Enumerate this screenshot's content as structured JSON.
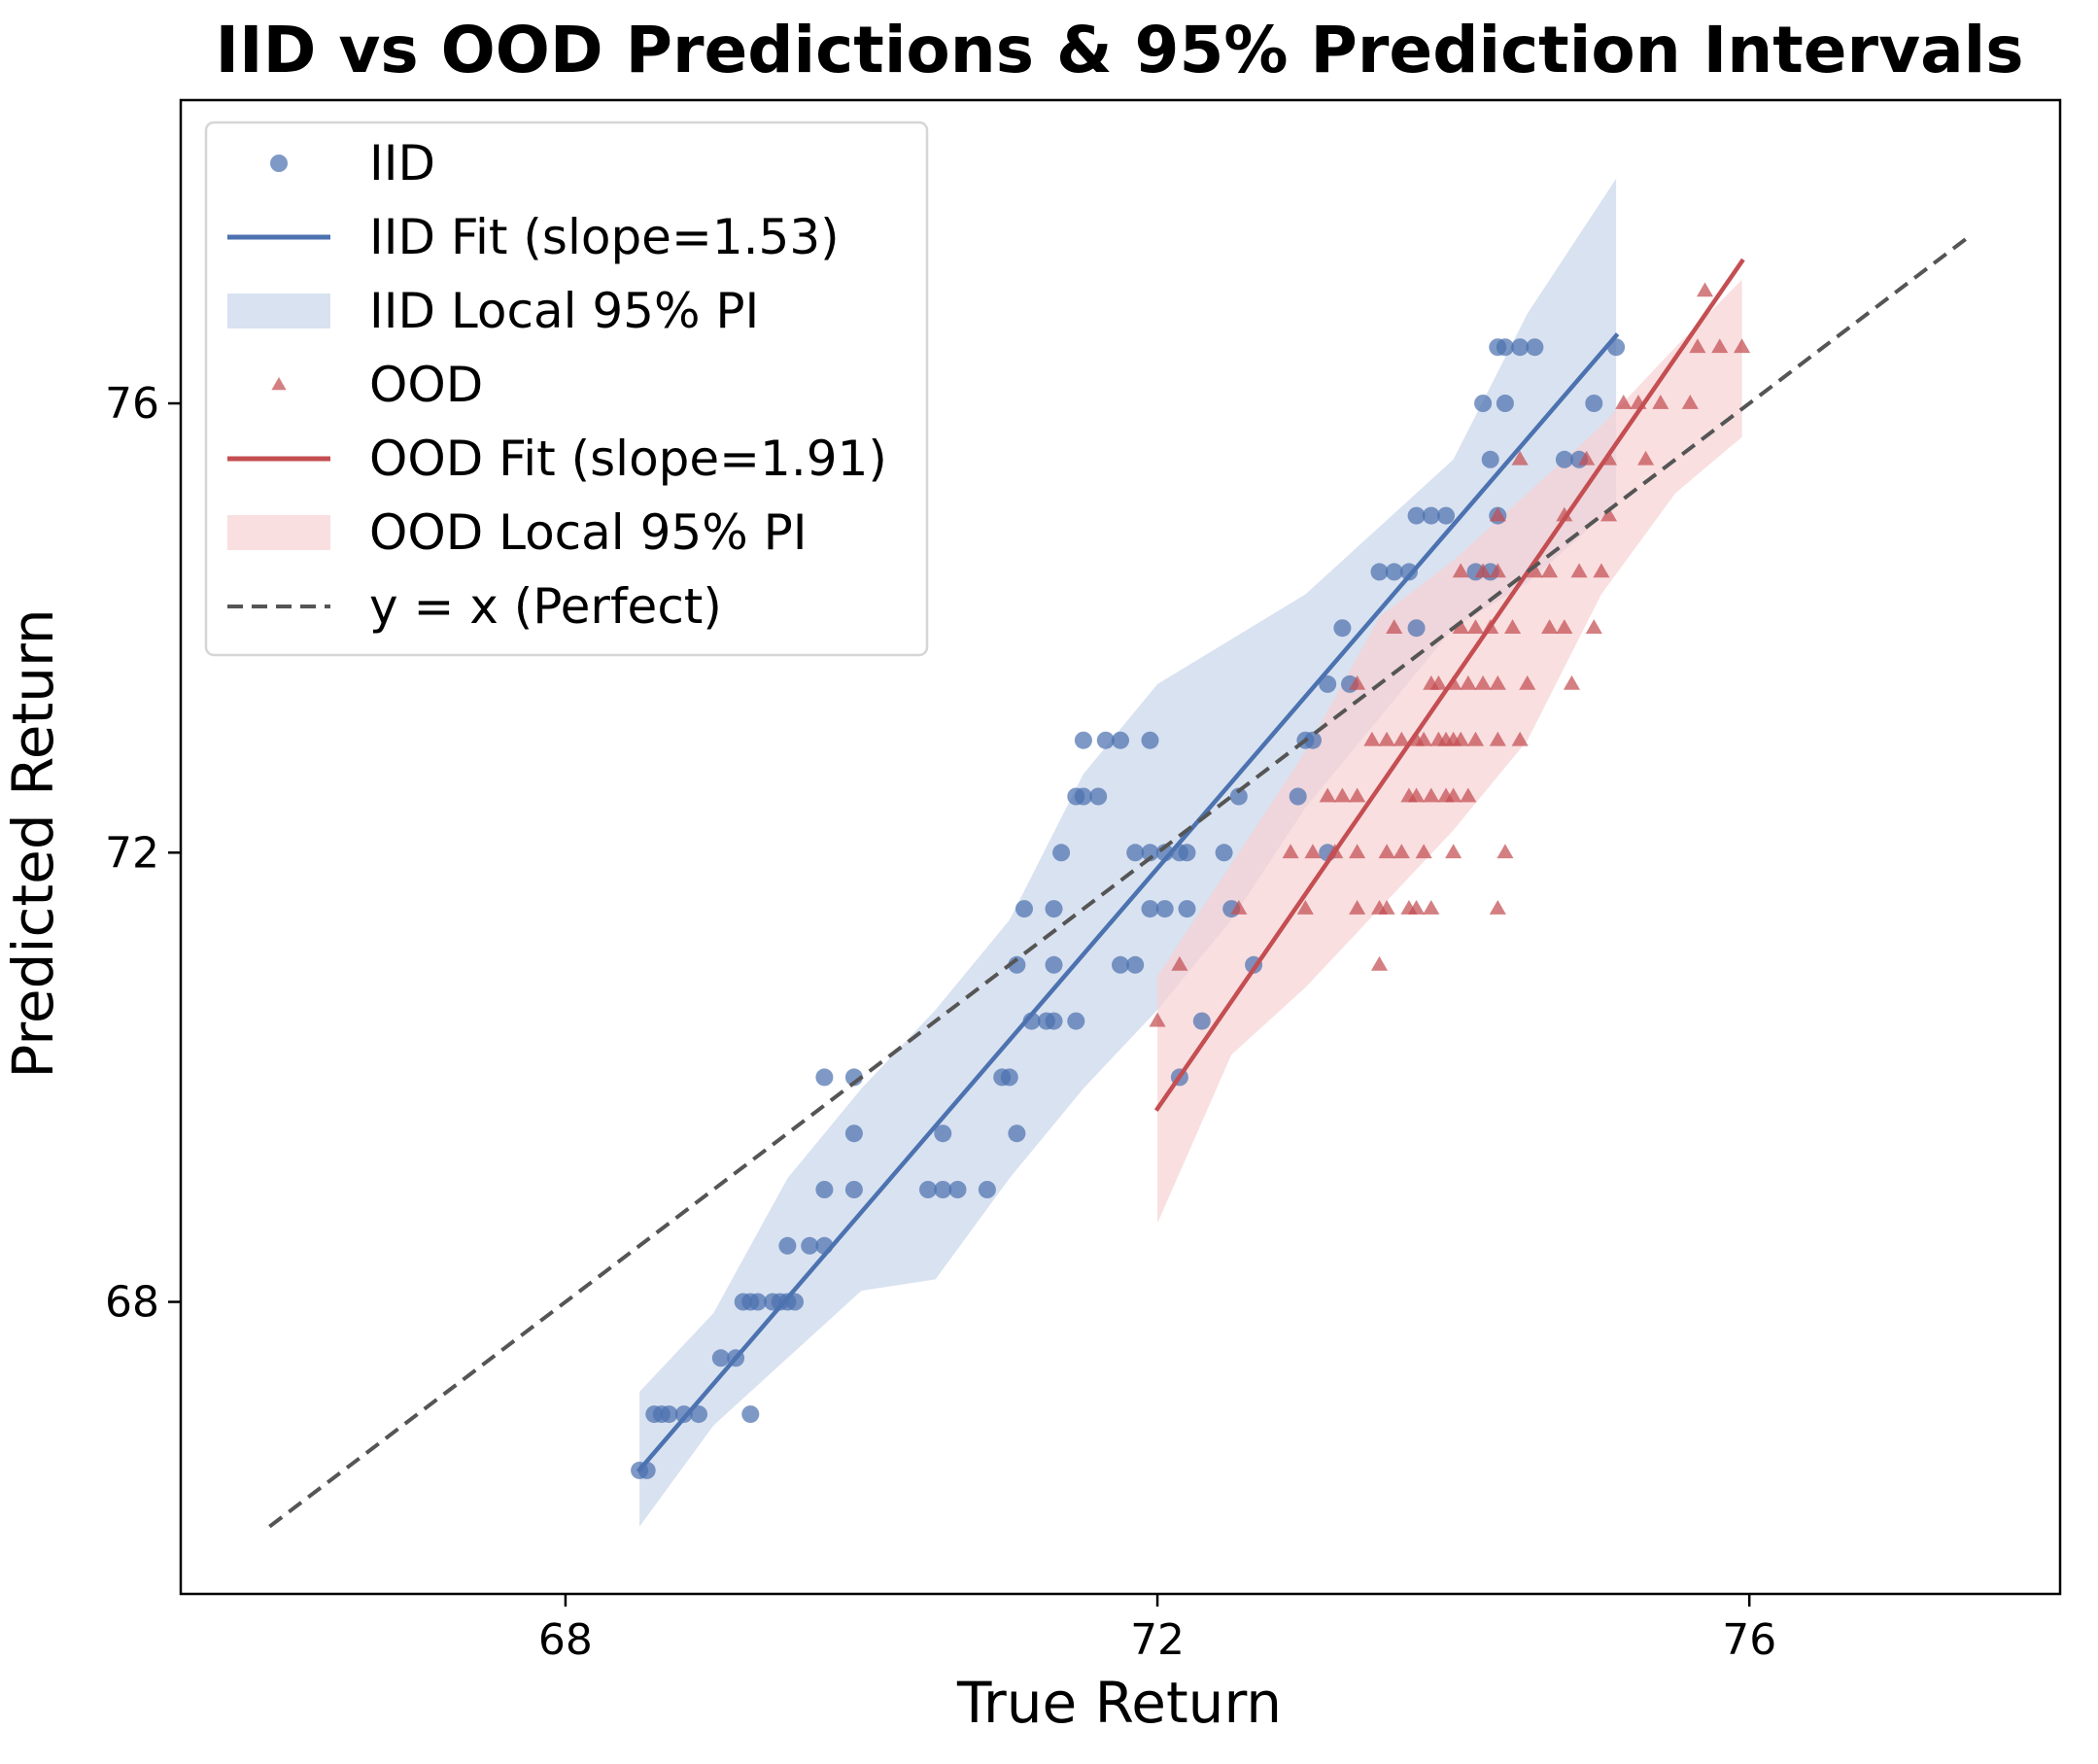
{
  "chart_data": {
    "type": "scatter",
    "title": "IID vs OOD Predictions & 95% Prediction Intervals",
    "xlabel": "True Return",
    "ylabel": "Predicted Return",
    "xlim": [
      65.4,
      78.1
    ],
    "ylim": [
      65.4,
      78.7
    ],
    "xticks": [
      68,
      72,
      76
    ],
    "yticks": [
      68,
      72,
      76
    ],
    "legend_position": "upper-left",
    "grid": false,
    "series": [
      {
        "name": "IID",
        "kind": "scatter",
        "marker": "circle",
        "color": "#4c72b0",
        "points": [
          [
            68.5,
            66.5
          ],
          [
            68.55,
            66.5
          ],
          [
            68.6,
            67
          ],
          [
            68.65,
            67
          ],
          [
            68.7,
            67
          ],
          [
            68.8,
            67
          ],
          [
            68.9,
            67
          ],
          [
            69.25,
            67
          ],
          [
            69.05,
            67.5
          ],
          [
            69.15,
            67.5
          ],
          [
            69.2,
            68
          ],
          [
            69.25,
            68
          ],
          [
            69.3,
            68
          ],
          [
            69.4,
            68
          ],
          [
            69.45,
            68
          ],
          [
            69.5,
            68
          ],
          [
            69.55,
            68
          ],
          [
            69.5,
            68.5
          ],
          [
            69.65,
            68.5
          ],
          [
            69.75,
            68.5
          ],
          [
            69.75,
            69
          ],
          [
            69.95,
            69
          ],
          [
            70.45,
            69
          ],
          [
            70.55,
            69
          ],
          [
            70.65,
            69
          ],
          [
            70.85,
            69
          ],
          [
            69.95,
            69.5
          ],
          [
            70.55,
            69.5
          ],
          [
            71.05,
            69.5
          ],
          [
            69.75,
            70
          ],
          [
            69.95,
            70
          ],
          [
            70.95,
            70
          ],
          [
            71.0,
            70
          ],
          [
            71.15,
            70.5
          ],
          [
            71.25,
            70.5
          ],
          [
            71.3,
            70.5
          ],
          [
            71.45,
            70.5
          ],
          [
            72.3,
            70.5
          ],
          [
            72.15,
            70
          ],
          [
            71.05,
            71
          ],
          [
            71.3,
            71
          ],
          [
            71.75,
            71
          ],
          [
            71.85,
            71
          ],
          [
            72.65,
            71
          ],
          [
            71.1,
            71.5
          ],
          [
            71.3,
            71.5
          ],
          [
            71.95,
            71.5
          ],
          [
            72.05,
            71.5
          ],
          [
            72.2,
            71.5
          ],
          [
            72.5,
            71.5
          ],
          [
            71.35,
            72
          ],
          [
            71.85,
            72
          ],
          [
            71.95,
            72
          ],
          [
            72.05,
            72
          ],
          [
            72.15,
            72
          ],
          [
            72.2,
            72
          ],
          [
            72.45,
            72
          ],
          [
            73.15,
            72
          ],
          [
            71.45,
            72.5
          ],
          [
            71.5,
            72.5
          ],
          [
            71.6,
            72.5
          ],
          [
            72.55,
            72.5
          ],
          [
            72.95,
            72.5
          ],
          [
            71.5,
            73
          ],
          [
            71.65,
            73
          ],
          [
            71.75,
            73
          ],
          [
            71.95,
            73
          ],
          [
            73.0,
            73
          ],
          [
            73.05,
            73
          ],
          [
            73.15,
            73.5
          ],
          [
            73.3,
            73.5
          ],
          [
            73.25,
            74
          ],
          [
            73.75,
            74
          ],
          [
            73.5,
            74.5
          ],
          [
            73.6,
            74.5
          ],
          [
            73.7,
            74.5
          ],
          [
            74.15,
            74.5
          ],
          [
            74.25,
            74.5
          ],
          [
            73.75,
            75
          ],
          [
            73.85,
            75
          ],
          [
            73.95,
            75
          ],
          [
            74.3,
            75
          ],
          [
            74.25,
            75.5
          ],
          [
            74.75,
            75.5
          ],
          [
            74.85,
            75.5
          ],
          [
            74.2,
            76
          ],
          [
            74.35,
            76
          ],
          [
            74.95,
            76
          ],
          [
            74.3,
            76.5
          ],
          [
            74.35,
            76.5
          ],
          [
            74.45,
            76.5
          ],
          [
            74.55,
            76.5
          ],
          [
            75.1,
            76.5
          ]
        ]
      },
      {
        "name": "IID Fit (slope=1.53)",
        "kind": "line",
        "color": "#4c72b0",
        "x_range": [
          68.5,
          75.1
        ],
        "slope": 1.53,
        "intercept": -38.3
      },
      {
        "name": "IID Local 95% PI",
        "kind": "band",
        "color": "#c9d5ea",
        "x": [
          68.5,
          69.0,
          69.5,
          70.0,
          70.5,
          71.0,
          71.5,
          72.0,
          72.5,
          73.0,
          73.5,
          74.0,
          74.5,
          75.1
        ],
        "upper": [
          67.2,
          67.9,
          69.1,
          69.9,
          70.6,
          71.4,
          72.7,
          73.5,
          73.9,
          74.3,
          74.9,
          75.5,
          76.8,
          78.0
        ],
        "lower": [
          66.0,
          66.9,
          67.5,
          68.1,
          68.2,
          69.1,
          69.9,
          70.6,
          71.4,
          72.4,
          73.2,
          74.0,
          74.4,
          75.1
        ]
      },
      {
        "name": "OOD",
        "kind": "scatter",
        "marker": "triangle",
        "color": "#c44e52",
        "points": [
          [
            72.0,
            70.5
          ],
          [
            72.15,
            71
          ],
          [
            73.5,
            71
          ],
          [
            72.55,
            71.5
          ],
          [
            73.0,
            71.5
          ],
          [
            73.35,
            71.5
          ],
          [
            73.5,
            71.5
          ],
          [
            73.55,
            71.5
          ],
          [
            73.7,
            71.5
          ],
          [
            73.75,
            71.5
          ],
          [
            73.85,
            71.5
          ],
          [
            74.3,
            71.5
          ],
          [
            72.9,
            72
          ],
          [
            73.05,
            72
          ],
          [
            73.2,
            72
          ],
          [
            73.35,
            72
          ],
          [
            73.55,
            72
          ],
          [
            73.65,
            72
          ],
          [
            73.8,
            72
          ],
          [
            74.0,
            72
          ],
          [
            74.35,
            72
          ],
          [
            73.15,
            72.5
          ],
          [
            73.25,
            72.5
          ],
          [
            73.35,
            72.5
          ],
          [
            73.7,
            72.5
          ],
          [
            73.75,
            72.5
          ],
          [
            73.85,
            72.5
          ],
          [
            73.95,
            72.5
          ],
          [
            74.0,
            72.5
          ],
          [
            74.1,
            72.5
          ],
          [
            73.45,
            73
          ],
          [
            73.55,
            73
          ],
          [
            73.65,
            73
          ],
          [
            73.75,
            73
          ],
          [
            73.8,
            73
          ],
          [
            73.9,
            73
          ],
          [
            73.95,
            73
          ],
          [
            74.0,
            73
          ],
          [
            74.05,
            73
          ],
          [
            74.15,
            73
          ],
          [
            74.3,
            73
          ],
          [
            74.45,
            73
          ],
          [
            73.35,
            73.5
          ],
          [
            73.85,
            73.5
          ],
          [
            73.9,
            73.5
          ],
          [
            74.0,
            73.5
          ],
          [
            74.1,
            73.5
          ],
          [
            74.2,
            73.5
          ],
          [
            74.3,
            73.5
          ],
          [
            74.5,
            73.5
          ],
          [
            74.8,
            73.5
          ],
          [
            73.6,
            74
          ],
          [
            74.05,
            74
          ],
          [
            74.15,
            74
          ],
          [
            74.25,
            74
          ],
          [
            74.4,
            74
          ],
          [
            74.65,
            74
          ],
          [
            74.75,
            74
          ],
          [
            74.95,
            74
          ],
          [
            74.05,
            74.5
          ],
          [
            74.2,
            74.5
          ],
          [
            74.3,
            74.5
          ],
          [
            74.55,
            74.5
          ],
          [
            74.65,
            74.5
          ],
          [
            74.85,
            74.5
          ],
          [
            75.0,
            74.5
          ],
          [
            74.3,
            75
          ],
          [
            74.75,
            75
          ],
          [
            75.05,
            75
          ],
          [
            74.45,
            75.5
          ],
          [
            74.9,
            75.5
          ],
          [
            75.05,
            75.5
          ],
          [
            75.3,
            75.5
          ],
          [
            75.15,
            76
          ],
          [
            75.25,
            76
          ],
          [
            75.4,
            76
          ],
          [
            75.6,
            76
          ],
          [
            75.65,
            76.5
          ],
          [
            75.8,
            76.5
          ],
          [
            75.95,
            76.5
          ],
          [
            75.7,
            77
          ]
        ]
      },
      {
        "name": "OOD Fit (slope=1.91)",
        "kind": "line",
        "color": "#c44e52",
        "x_range": [
          72.0,
          75.95
        ],
        "slope": 1.91,
        "intercept": -67.8
      },
      {
        "name": "OOD Local 95% PI",
        "kind": "band",
        "color": "#f6d2d3",
        "x": [
          72.0,
          72.5,
          73.0,
          73.5,
          74.0,
          74.5,
          75.0,
          75.5,
          75.95
        ],
        "upper": [
          70.9,
          71.9,
          72.9,
          74.1,
          74.6,
          75.2,
          75.8,
          76.5,
          77.1
        ],
        "lower": [
          68.7,
          70.2,
          70.8,
          71.5,
          72.2,
          73.0,
          74.3,
          75.2,
          75.7
        ]
      },
      {
        "name": "y = x (Perfect)",
        "kind": "reference-line",
        "color": "#555555",
        "x_range": [
          66.0,
          77.5
        ]
      }
    ]
  }
}
